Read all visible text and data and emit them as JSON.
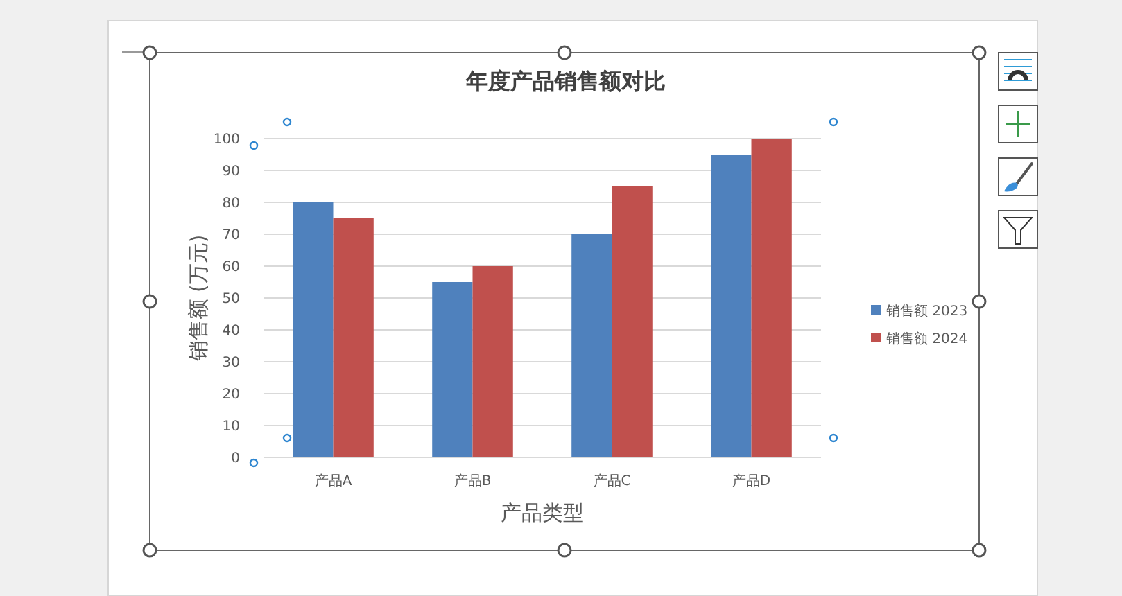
{
  "chart_data": {
    "type": "bar",
    "title": "年度产品销售额对比",
    "xlabel": "产品类型",
    "ylabel": "销售额 (万元)",
    "categories": [
      "产品A",
      "产品B",
      "产品C",
      "产品D"
    ],
    "series": [
      {
        "name": "销售额 2023",
        "color": "#4f81bd",
        "values": [
          80,
          55,
          70,
          95
        ]
      },
      {
        "name": "销售额 2024",
        "color": "#c0504d",
        "values": [
          75,
          60,
          85,
          100
        ]
      }
    ],
    "ylim": [
      0,
      100
    ],
    "yticks": [
      0,
      10,
      20,
      30,
      40,
      50,
      60,
      70,
      80,
      90,
      100
    ],
    "grid": "y",
    "legend": "right"
  }
}
